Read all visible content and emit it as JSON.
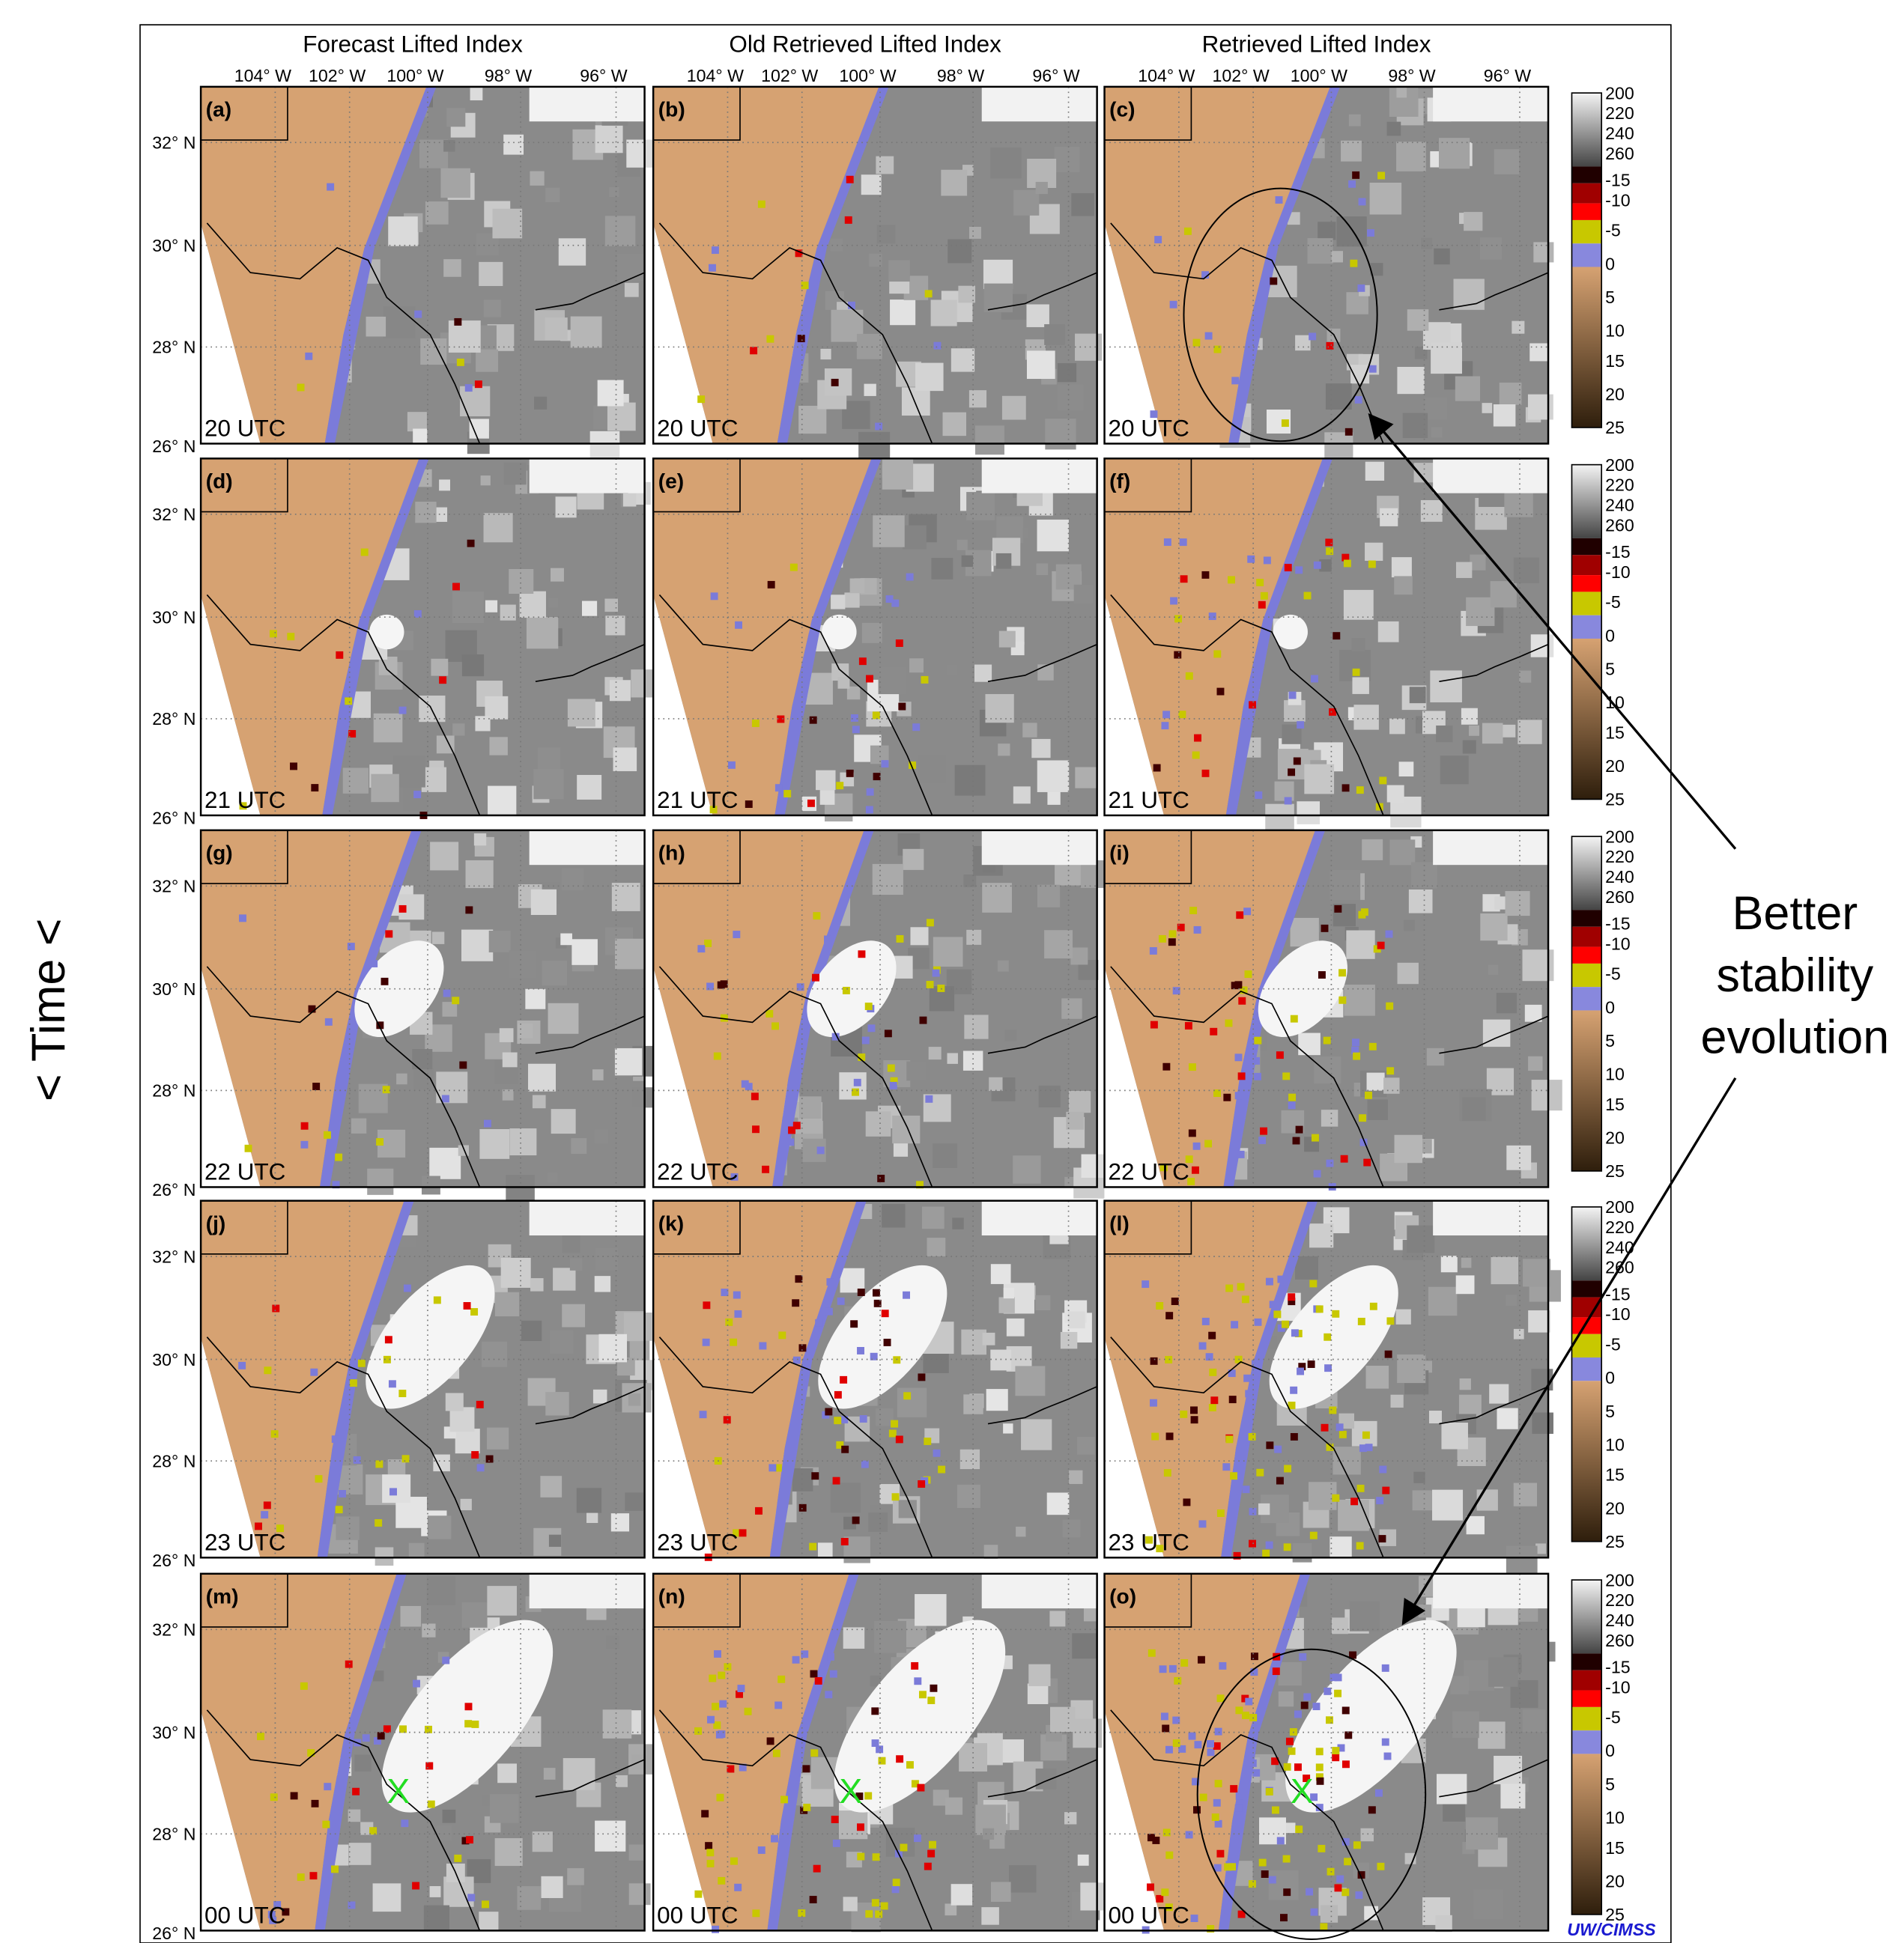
{
  "columns": [
    "Forecast Lifted Index",
    "Old Retrieved Lifted Index",
    "Retrieved Lifted Index"
  ],
  "longitude_labels": [
    "104° W",
    "102° W",
    "100° W",
    "98° W",
    "96° W"
  ],
  "latitude_labels": [
    "32° N",
    "30° N",
    "28° N",
    "26° N"
  ],
  "rows": [
    {
      "time": "20 UTC",
      "panels": [
        "(a)",
        "(b)",
        "(c)"
      ]
    },
    {
      "time": "21 UTC",
      "panels": [
        "(d)",
        "(e)",
        "(f)"
      ]
    },
    {
      "time": "22 UTC",
      "panels": [
        "(g)",
        "(h)",
        "(i)"
      ]
    },
    {
      "time": "23 UTC",
      "panels": [
        "(j)",
        "(k)",
        "(l)"
      ]
    },
    {
      "time": "00 UTC",
      "panels": [
        "(m)",
        "(n)",
        "(o)"
      ]
    }
  ],
  "colorbar_labels": [
    "200",
    "220",
    "240",
    "260",
    "-15",
    "-10",
    "-5",
    "0",
    "5",
    "10",
    "15",
    "20",
    "25"
  ],
  "annotation": [
    "Better",
    "stability",
    "evolution"
  ],
  "time_axis": "< Time <",
  "marker": "X",
  "credit": "UW/CIMSS"
}
